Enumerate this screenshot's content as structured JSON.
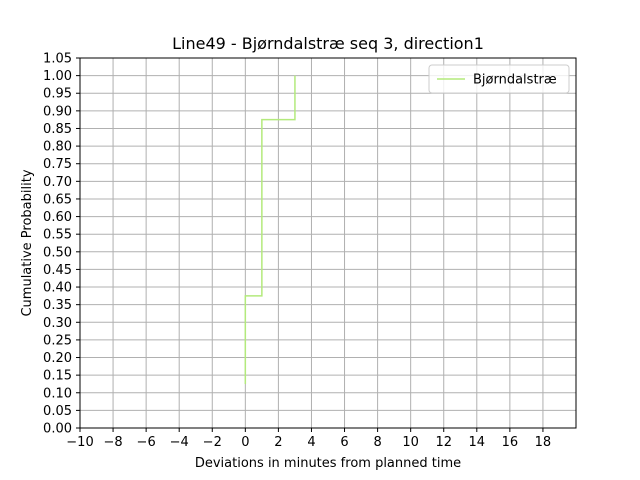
{
  "chart_data": {
    "type": "line",
    "title": "Line49 - Bjørndalstræ seq 3, direction1",
    "xlabel": "Deviations in minutes from planned time",
    "ylabel": "Cumulative Probability",
    "xlim": [
      -10,
      20
    ],
    "ylim": [
      0,
      1.05
    ],
    "xticks": [
      -10,
      -8,
      -6,
      -4,
      -2,
      0,
      2,
      4,
      6,
      8,
      10,
      12,
      14,
      16,
      18
    ],
    "xtick_labels": [
      "−10",
      "−8",
      "−6",
      "−4",
      "−2",
      "0",
      "2",
      "4",
      "6",
      "8",
      "10",
      "12",
      "14",
      "16",
      "18"
    ],
    "yticks": [
      0,
      0.05,
      0.1,
      0.15,
      0.2,
      0.25,
      0.3,
      0.35,
      0.4,
      0.45,
      0.5,
      0.55,
      0.6,
      0.65,
      0.7,
      0.75,
      0.8,
      0.85,
      0.9,
      0.95,
      1.0,
      1.05
    ],
    "ytick_labels": [
      "0.00",
      "0.05",
      "0.10",
      "0.15",
      "0.20",
      "0.25",
      "0.30",
      "0.35",
      "0.40",
      "0.45",
      "0.50",
      "0.55",
      "0.60",
      "0.65",
      "0.70",
      "0.75",
      "0.80",
      "0.85",
      "0.90",
      "0.95",
      "1.00",
      "1.05"
    ],
    "grid": true,
    "legend_position": "top-right",
    "series": [
      {
        "name": "Bjørndalstræ",
        "color": "#b3ea7c",
        "step": true,
        "x": [
          0,
          0,
          1,
          1,
          3,
          3
        ],
        "y": [
          0.125,
          0.375,
          0.375,
          0.875,
          0.875,
          1.0
        ]
      }
    ]
  }
}
